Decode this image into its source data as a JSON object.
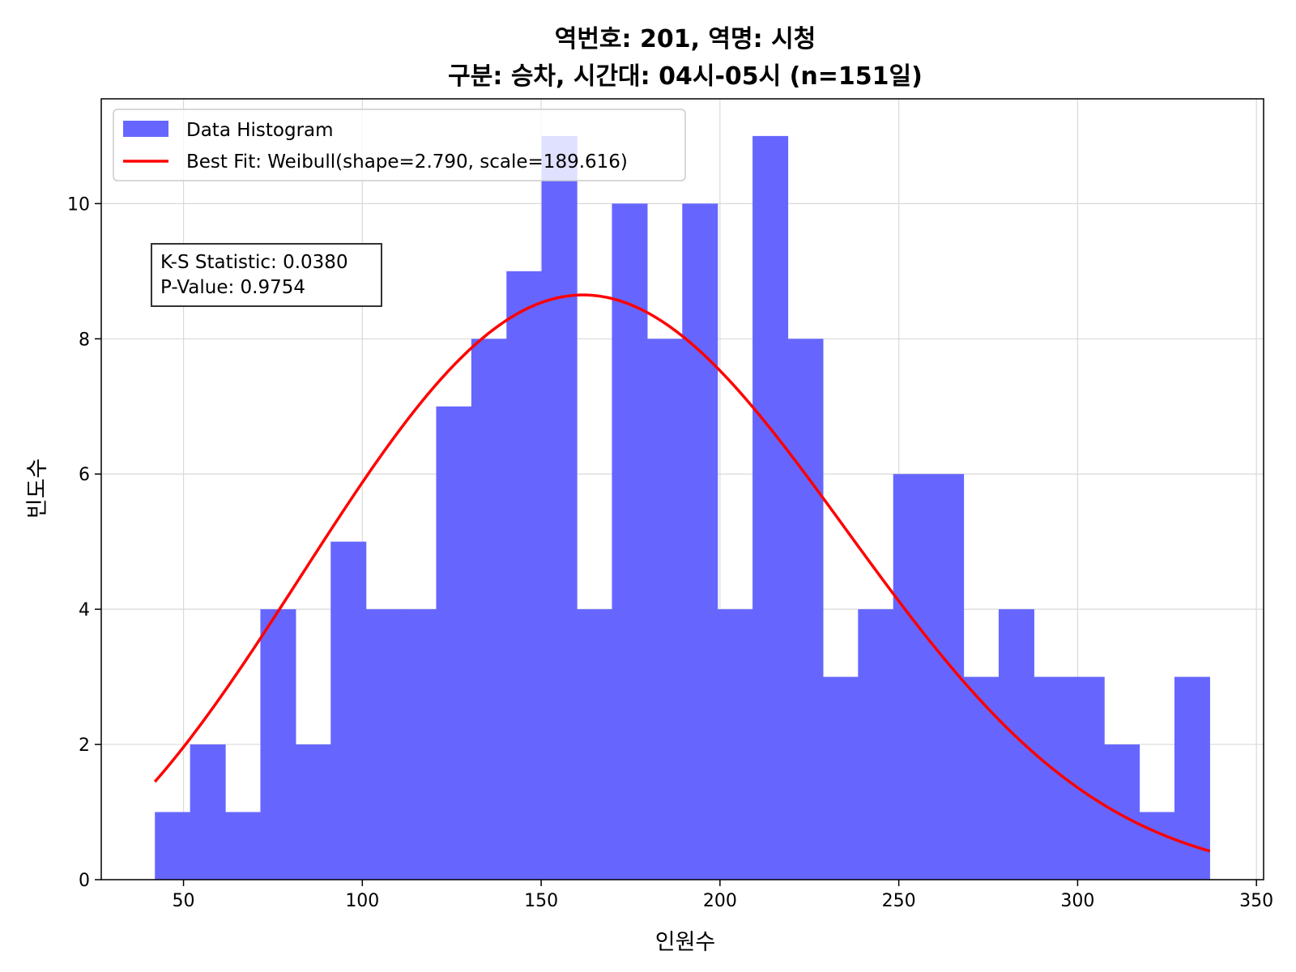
{
  "chart_data": {
    "type": "bar",
    "title_line1": "역번호: 201, 역명: 시청",
    "title_line2": "구분: 승차, 시간대: 04시-05시 (n=151일)",
    "xlabel": "인원수",
    "ylabel": "빈도수",
    "xlim": [
      27,
      352
    ],
    "ylim": [
      0,
      11.55
    ],
    "xticks": [
      50,
      100,
      150,
      200,
      250,
      300,
      350
    ],
    "yticks": [
      0,
      2,
      4,
      6,
      8,
      10
    ],
    "grid": true,
    "bin_start": 42,
    "bin_width": 9.83,
    "histogram": [
      1,
      2,
      1,
      4,
      2,
      5,
      4,
      4,
      7,
      8,
      9,
      11,
      4,
      10,
      8,
      10,
      4,
      11,
      8,
      3,
      4,
      6,
      6,
      3,
      4,
      3,
      3,
      2,
      1,
      3
    ],
    "bar_color": "#6666ff",
    "fit": {
      "distribution": "Weibull",
      "shape": 2.79,
      "scale": 189.616,
      "color": "#ff0000",
      "x_range": [
        42,
        337
      ]
    },
    "legend": {
      "position": "upper-left",
      "entries": [
        {
          "label": "Data Histogram",
          "color": "#6666ff",
          "kind": "patch"
        },
        {
          "label": "Best Fit: Weibull(shape=2.790, scale=189.616)",
          "color": "#ff0000",
          "kind": "line"
        }
      ]
    },
    "annotation": {
      "ks_text": "K-S Statistic: 0.0380",
      "p_text": "P-Value: 0.9754"
    }
  }
}
